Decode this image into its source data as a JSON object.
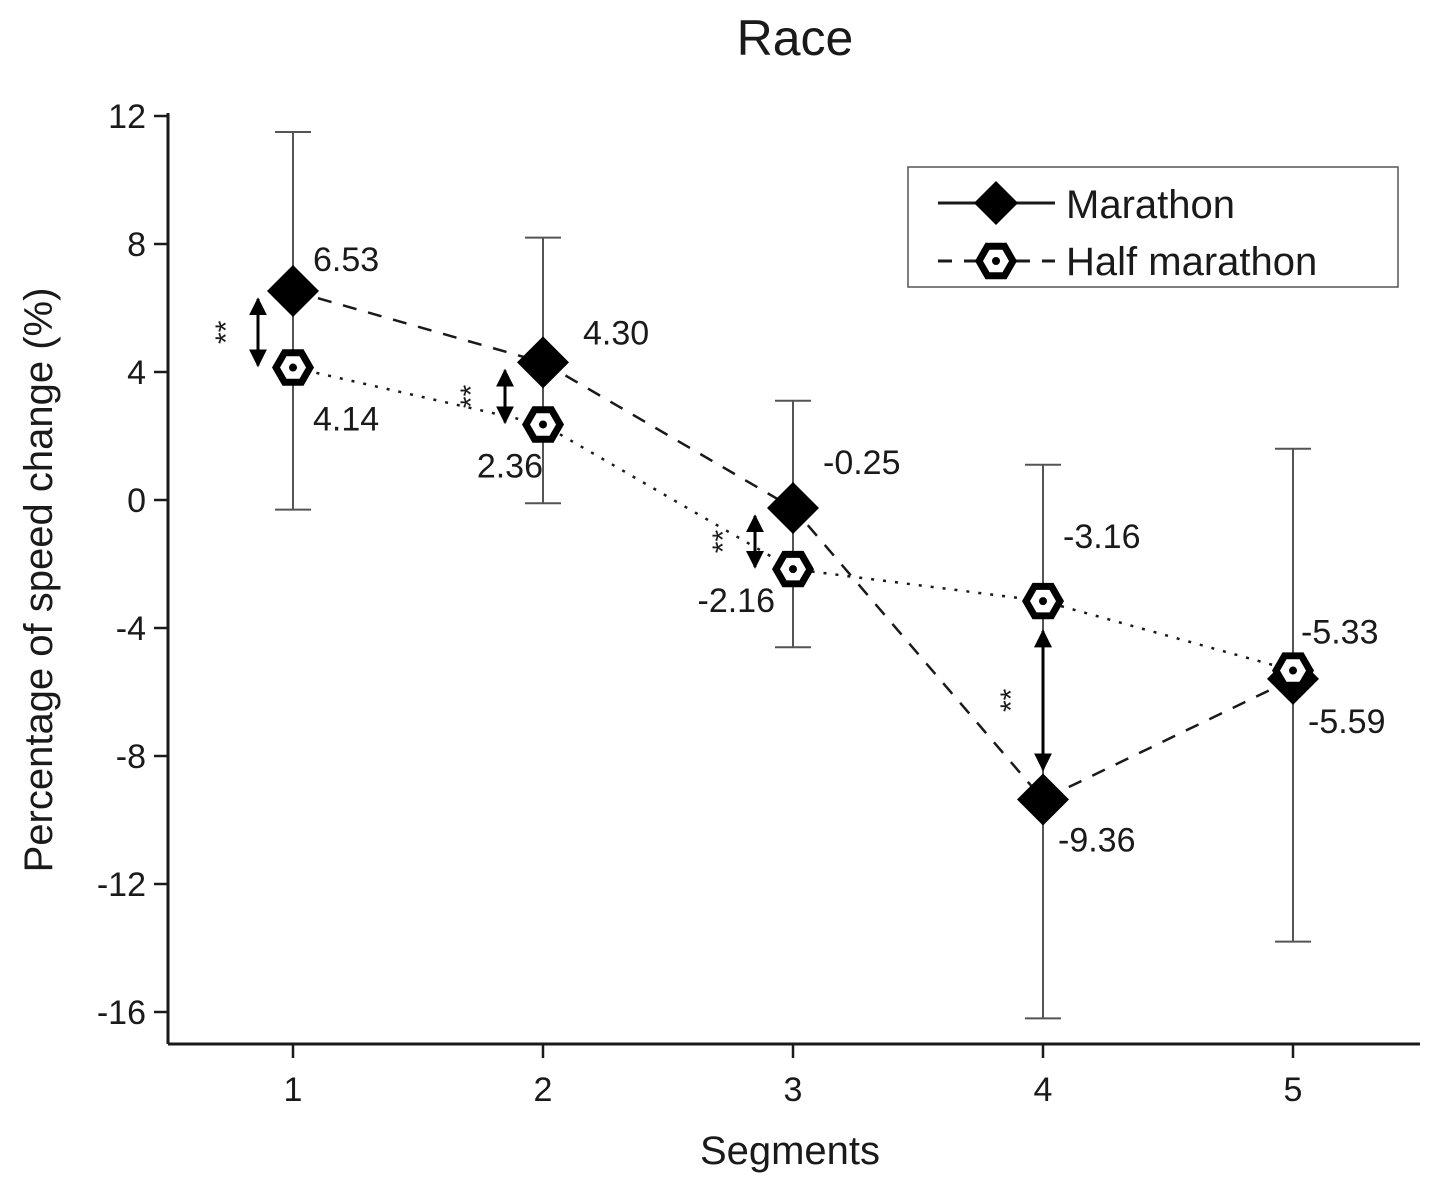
{
  "chart_data": {
    "type": "line",
    "title": "Race",
    "xlabel": "Segments",
    "ylabel": "Percentage of speed change (%)",
    "x": [
      1,
      2,
      3,
      4,
      5
    ],
    "xticks": [
      "1",
      "2",
      "3",
      "4",
      "5"
    ],
    "xlim": [
      0.5,
      5.5
    ],
    "ylim": [
      -17,
      12
    ],
    "yticks": [
      12,
      8,
      4,
      0,
      -4,
      -8,
      -12,
      -16
    ],
    "ytick_labels": [
      "12",
      "8",
      "4",
      "0",
      "-4",
      "-8",
      "-12",
      "-16"
    ],
    "legend_position": "top-right",
    "series": [
      {
        "name": "Marathon",
        "marker": "filled-diamond",
        "line": "dashed",
        "values": [
          6.53,
          4.3,
          -0.25,
          -9.36,
          -5.59
        ],
        "labels": [
          "6.53",
          "4.30",
          "-0.25",
          "-9.36",
          "-5.59"
        ]
      },
      {
        "name": "Half marathon",
        "marker": "hexagon",
        "line": "dotted",
        "values": [
          4.14,
          2.36,
          -2.16,
          -3.16,
          -5.33
        ],
        "labels": [
          "4.14",
          "2.36",
          "-2.16",
          "-3.16",
          "-5.33"
        ]
      }
    ],
    "error_bars": [
      {
        "x": 1,
        "low": -0.3,
        "high": 11.5
      },
      {
        "x": 2,
        "low": -0.1,
        "high": 8.2
      },
      {
        "x": 3,
        "low": -4.6,
        "high": 3.1
      },
      {
        "x": 4,
        "low": -16.2,
        "high": 1.1
      },
      {
        "x": 5,
        "low": -13.8,
        "high": 1.6
      }
    ],
    "significance": [
      {
        "x": 1,
        "label": "**"
      },
      {
        "x": 2,
        "label": "**"
      },
      {
        "x": 3,
        "label": "**"
      },
      {
        "x": 4,
        "label": "**"
      }
    ]
  }
}
